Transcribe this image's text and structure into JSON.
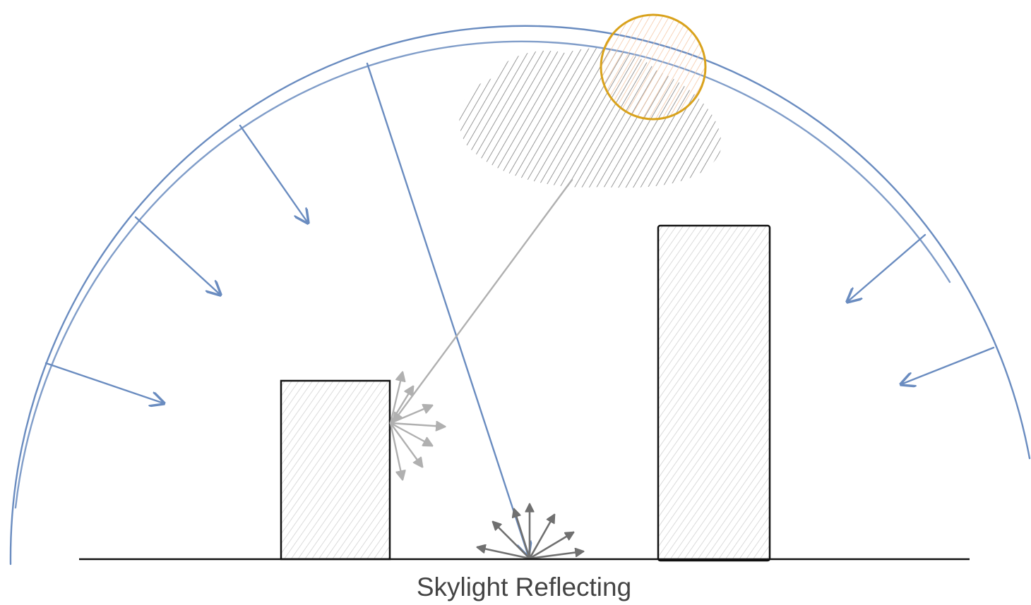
{
  "caption": "Skylight Reflecting"
}
